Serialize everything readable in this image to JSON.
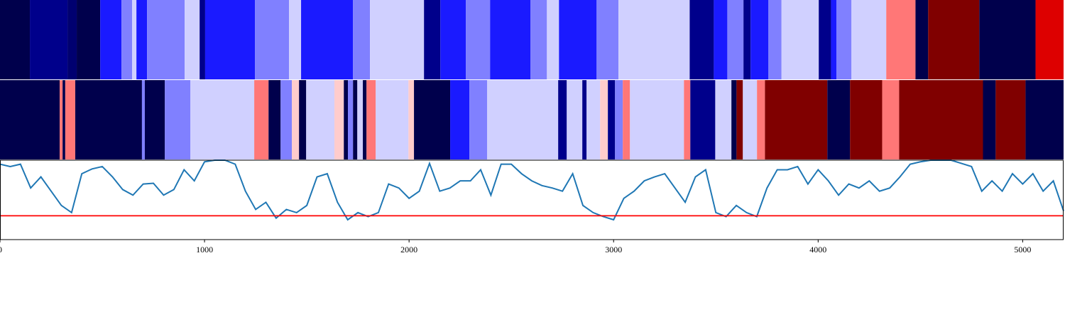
{
  "chart_data": [
    {
      "type": "strip",
      "xlim": [
        0,
        5200
      ],
      "edges": [
        0,
        146,
        330,
        375,
        490,
        594,
        646,
        667,
        719,
        903,
        976,
        1003,
        1247,
        1413,
        1472,
        1726,
        1809,
        2073,
        2153,
        2278,
        2396,
        2594,
        2674,
        2733,
        2917,
        3024,
        3372,
        3490,
        3556,
        3635,
        3670,
        3757,
        3821,
        4003,
        4063,
        4090,
        4163,
        4333,
        4476,
        4538,
        4788,
        5063,
        5200
      ],
      "colors": [
        "#00004c",
        "#00008b",
        "#000070",
        "#00004c",
        "#1a1aff",
        "#8080ff",
        "#d0d0ff",
        "#1a1aff",
        "#8080ff",
        "#d0d0ff",
        "#00008b",
        "#1a1aff",
        "#8080ff",
        "#d0d0ff",
        "#1a1aff",
        "#8080ff",
        "#d0d0ff",
        "#00008b",
        "#1a1aff",
        "#8080ff",
        "#1a1aff",
        "#8080ff",
        "#d0d0ff",
        "#1a1aff",
        "#8080ff",
        "#d0d0ff",
        "#00008b",
        "#1a1aff",
        "#8080ff",
        "#00008b",
        "#1a1aff",
        "#8080ff",
        "#d0d0ff",
        "#00008b",
        "#1a1aff",
        "#8080ff",
        "#d0d0ff",
        "#ff7777",
        "#00004c",
        "#800000",
        "#00004c",
        "#dd0000"
      ]
    },
    {
      "type": "strip",
      "xlim": [
        0,
        5200
      ],
      "edges": [
        0,
        292,
        306,
        319,
        368,
        694,
        708,
        806,
        931,
        1243,
        1313,
        1372,
        1427,
        1462,
        1497,
        1635,
        1681,
        1701,
        1726,
        1747,
        1774,
        1792,
        1837,
        1997,
        2024,
        2201,
        2295,
        2382,
        2729,
        2771,
        2847,
        2868,
        2934,
        2972,
        3007,
        3045,
        3080,
        3344,
        3375,
        3497,
        3576,
        3601,
        3632,
        3701,
        3740,
        4045,
        4156,
        4313,
        4396,
        4806,
        4868,
        5014,
        5200
      ],
      "colors": [
        "#00004c",
        "#ff7777",
        "#00004c",
        "#ff7777",
        "#00004c",
        "#8080ff",
        "#00004c",
        "#8080ff",
        "#d0d0ff",
        "#ff7777",
        "#00004c",
        "#8080ff",
        "#ffcccc",
        "#00004c",
        "#d0d0ff",
        "#ffcccc",
        "#00004c",
        "#8080ff",
        "#00004c",
        "#d0d0ff",
        "#00004c",
        "#ff7777",
        "#d0d0ff",
        "#ffcccc",
        "#00004c",
        "#1a1aff",
        "#8080ff",
        "#d0d0ff",
        "#00008b",
        "#d0d0ff",
        "#00008b",
        "#d0d0ff",
        "#ffcccc",
        "#00008b",
        "#8080ff",
        "#ff7777",
        "#d0d0ff",
        "#ff7777",
        "#00008b",
        "#d0d0ff",
        "#00004c",
        "#800000",
        "#d0d0ff",
        "#ff7777",
        "#800000",
        "#00004c",
        "#800000",
        "#ff7777",
        "#800000",
        "#00004c",
        "#800000",
        "#00004c"
      ]
    },
    {
      "type": "line",
      "xlim": [
        0,
        5200
      ],
      "ylim": [
        0,
        1
      ],
      "xticks": [
        0,
        1000,
        2000,
        3000,
        4000,
        5000
      ],
      "color": "#1f77b4",
      "threshold": {
        "value": 0.3,
        "color": "#ff0000"
      },
      "x": [
        0,
        50,
        100,
        150,
        200,
        250,
        300,
        350,
        400,
        450,
        500,
        550,
        600,
        650,
        700,
        750,
        800,
        850,
        900,
        950,
        1000,
        1050,
        1100,
        1150,
        1200,
        1250,
        1300,
        1350,
        1400,
        1450,
        1500,
        1550,
        1600,
        1650,
        1700,
        1750,
        1800,
        1850,
        1900,
        1950,
        2000,
        2050,
        2100,
        2150,
        2200,
        2250,
        2300,
        2350,
        2400,
        2450,
        2500,
        2550,
        2600,
        2650,
        2700,
        2750,
        2800,
        2850,
        2900,
        2950,
        3000,
        3050,
        3100,
        3150,
        3200,
        3250,
        3300,
        3350,
        3400,
        3450,
        3500,
        3550,
        3600,
        3650,
        3700,
        3750,
        3800,
        3850,
        3900,
        3950,
        4000,
        4050,
        4100,
        4150,
        4200,
        4250,
        4300,
        4350,
        4400,
        4450,
        4500,
        4550,
        4600,
        4650,
        4700,
        4750,
        4800,
        4850,
        4900,
        4950,
        5000,
        5050,
        5100,
        5150,
        5200
      ],
      "values": [
        0.95,
        0.92,
        0.95,
        0.65,
        0.79,
        0.61,
        0.43,
        0.34,
        0.83,
        0.89,
        0.92,
        0.79,
        0.63,
        0.56,
        0.7,
        0.71,
        0.56,
        0.63,
        0.88,
        0.74,
        0.98,
        1.0,
        1.0,
        0.95,
        0.61,
        0.38,
        0.47,
        0.27,
        0.38,
        0.34,
        0.43,
        0.79,
        0.83,
        0.47,
        0.25,
        0.34,
        0.29,
        0.34,
        0.7,
        0.65,
        0.52,
        0.61,
        0.96,
        0.61,
        0.65,
        0.74,
        0.74,
        0.88,
        0.56,
        0.95,
        0.95,
        0.83,
        0.74,
        0.68,
        0.65,
        0.61,
        0.83,
        0.43,
        0.34,
        0.29,
        0.25,
        0.52,
        0.61,
        0.74,
        0.79,
        0.83,
        0.65,
        0.47,
        0.79,
        0.88,
        0.34,
        0.29,
        0.43,
        0.34,
        0.29,
        0.65,
        0.88,
        0.88,
        0.92,
        0.7,
        0.88,
        0.74,
        0.56,
        0.7,
        0.65,
        0.74,
        0.61,
        0.65,
        0.79,
        0.95,
        0.98,
        1.0,
        1.0,
        1.0,
        0.96,
        0.92,
        0.61,
        0.74,
        0.61,
        0.83,
        0.7,
        0.83,
        0.61,
        0.74,
        0.36
      ]
    }
  ]
}
